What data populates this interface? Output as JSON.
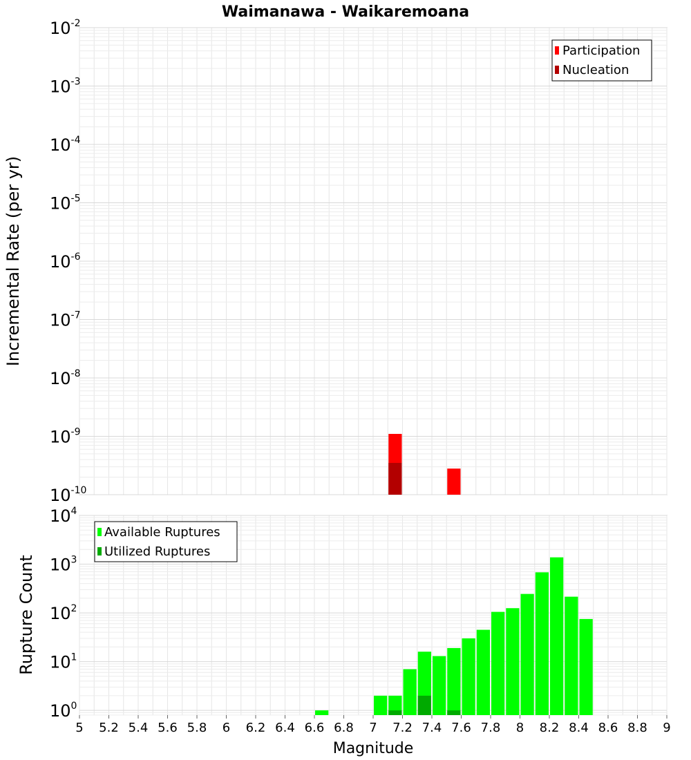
{
  "title": "Waimanawa - Waikaremoana",
  "colors": {
    "participation": "#ff0000",
    "nucleation": "#b30000",
    "available": "#00ff00",
    "utilized": "#00aa00"
  },
  "chart_data": [
    {
      "type": "bar",
      "title": "Waimanawa - Waikaremoana",
      "xlabel": "",
      "ylabel": "Incremental Rate (per yr)",
      "y_scale": "log",
      "xlim": [
        5,
        9
      ],
      "ylim": [
        1e-10,
        0.01
      ],
      "bin_width": 0.1,
      "legend_position": "top-right",
      "grid": true,
      "y_ticks": [
        {
          "base": "10",
          "exp": "-2",
          "value": 0.01
        },
        {
          "base": "10",
          "exp": "-3",
          "value": 0.001
        },
        {
          "base": "10",
          "exp": "-4",
          "value": 0.0001
        },
        {
          "base": "10",
          "exp": "-5",
          "value": 1e-05
        },
        {
          "base": "10",
          "exp": "-6",
          "value": 1e-06
        },
        {
          "base": "10",
          "exp": "-7",
          "value": 1e-07
        },
        {
          "base": "10",
          "exp": "-8",
          "value": 1e-08
        },
        {
          "base": "10",
          "exp": "-9",
          "value": 1e-09
        },
        {
          "base": "10",
          "exp": "-10",
          "value": 1e-10
        }
      ],
      "series": [
        {
          "name": "Participation",
          "x": [
            7.15,
            7.55
          ],
          "values": [
            1.1e-09,
            2.8e-10
          ]
        },
        {
          "name": "Nucleation",
          "x": [
            7.15
          ],
          "values": [
            3.5e-10
          ]
        }
      ]
    },
    {
      "type": "bar",
      "title": "",
      "xlabel": "Magnitude",
      "ylabel": "Rupture Count",
      "y_scale": "log",
      "xlim": [
        5,
        9
      ],
      "ylim": [
        0.8,
        10000
      ],
      "bin_width": 0.1,
      "legend_position": "top-left",
      "grid": true,
      "x_ticks": [
        "5",
        "5.2",
        "5.4",
        "5.6",
        "5.8",
        "6",
        "6.2",
        "6.4",
        "6.6",
        "6.8",
        "7",
        "7.2",
        "7.4",
        "7.6",
        "7.8",
        "8",
        "8.2",
        "8.4",
        "8.6",
        "8.8",
        "9"
      ],
      "y_ticks": [
        {
          "base": "10",
          "exp": "4",
          "value": 10000
        },
        {
          "base": "10",
          "exp": "3",
          "value": 1000
        },
        {
          "base": "10",
          "exp": "2",
          "value": 100
        },
        {
          "base": "10",
          "exp": "1",
          "value": 10
        },
        {
          "base": "10",
          "exp": "0",
          "value": 1
        }
      ],
      "series": [
        {
          "name": "Available Ruptures",
          "x": [
            6.65,
            7.05,
            7.15,
            7.25,
            7.35,
            7.45,
            7.55,
            7.65,
            7.75,
            7.85,
            7.95,
            8.05,
            8.15,
            8.25,
            8.35,
            8.45
          ],
          "values": [
            1,
            2,
            2,
            7,
            16,
            13,
            19,
            30,
            45,
            105,
            125,
            245,
            680,
            1380,
            215,
            75
          ]
        },
        {
          "name": "Utilized Ruptures",
          "x": [
            7.15,
            7.35,
            7.55
          ],
          "values": [
            1,
            2,
            1
          ]
        }
      ]
    }
  ]
}
